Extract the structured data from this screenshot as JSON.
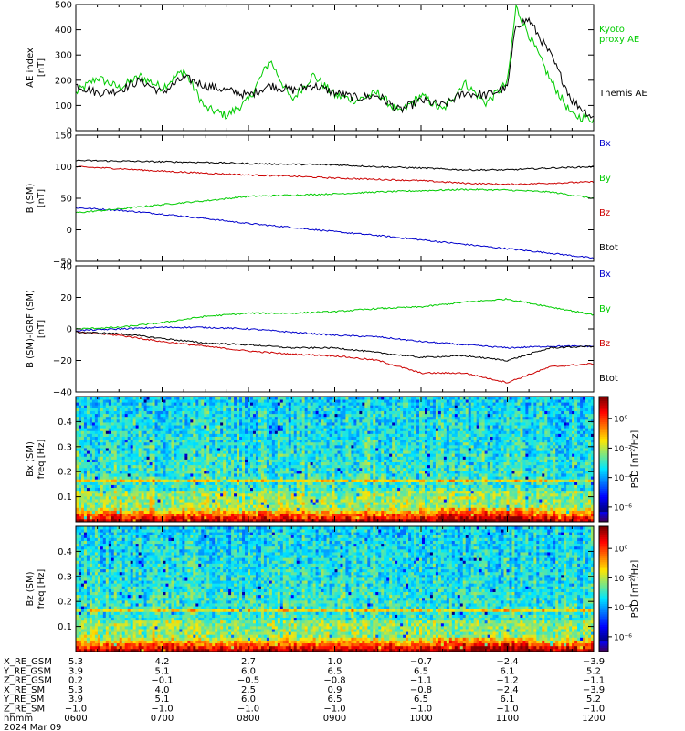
{
  "chart_data": [
    {
      "type": "line",
      "title": "",
      "ylabel_lines": [
        "AE index",
        "[nT]"
      ],
      "ylim": [
        0,
        500
      ],
      "yticks": [
        0,
        100,
        200,
        300,
        400,
        500
      ],
      "legend": [
        {
          "name": "Kyoto proxy AE",
          "color": "#00cc00"
        },
        {
          "name": "Themis AE",
          "color": "#000000"
        }
      ],
      "x_hours": [
        6.0,
        6.25,
        6.5,
        6.75,
        7.0,
        7.25,
        7.5,
        7.75,
        8.0,
        8.25,
        8.5,
        8.75,
        9.0,
        9.25,
        9.5,
        9.75,
        10.0,
        10.25,
        10.5,
        10.75,
        11.0,
        11.1,
        11.25,
        11.5,
        11.75,
        12.0
      ],
      "series": [
        {
          "name": "Kyoto proxy AE",
          "color": "#00cc00",
          "values": [
            150,
            210,
            170,
            215,
            170,
            240,
            90,
            60,
            120,
            280,
            120,
            220,
            140,
            120,
            150,
            70,
            140,
            80,
            190,
            110,
            190,
            490,
            380,
            200,
            60,
            45
          ]
        },
        {
          "name": "Themis AE",
          "color": "#000000",
          "values": [
            180,
            150,
            160,
            200,
            150,
            210,
            180,
            160,
            140,
            180,
            160,
            180,
            150,
            130,
            140,
            80,
            120,
            100,
            150,
            140,
            170,
            420,
            440,
            300,
            120,
            50
          ]
        }
      ]
    },
    {
      "type": "line",
      "title": "",
      "ylabel_lines": [
        "B (SM)",
        "[nT]"
      ],
      "ylim": [
        -50,
        150
      ],
      "yticks": [
        -50,
        0,
        50,
        100,
        150
      ],
      "legend": [
        {
          "name": "Bx",
          "color": "#0000cc"
        },
        {
          "name": "By",
          "color": "#00cc00"
        },
        {
          "name": "Bz",
          "color": "#cc0000"
        },
        {
          "name": "Btot",
          "color": "#000000"
        }
      ],
      "x_hours": [
        6.0,
        6.5,
        7.0,
        7.5,
        8.0,
        8.5,
        9.0,
        9.5,
        10.0,
        10.5,
        11.0,
        11.5,
        12.0
      ],
      "series": [
        {
          "name": "Bx",
          "color": "#0000cc",
          "values": [
            35,
            31,
            25,
            18,
            10,
            4,
            -3,
            -9,
            -16,
            -23,
            -30,
            -37,
            -45
          ]
        },
        {
          "name": "By",
          "color": "#00cc00",
          "values": [
            27,
            33,
            40,
            46,
            53,
            55,
            57,
            60,
            62,
            64,
            63,
            60,
            50
          ]
        },
        {
          "name": "Bz",
          "color": "#cc0000",
          "values": [
            100,
            97,
            93,
            90,
            87,
            85,
            82,
            80,
            78,
            74,
            72,
            74,
            76
          ]
        },
        {
          "name": "Btot",
          "color": "#000000",
          "values": [
            110,
            109,
            108,
            107,
            105,
            104,
            103,
            100,
            98,
            95,
            95,
            98,
            100
          ]
        }
      ]
    },
    {
      "type": "line",
      "title": "",
      "ylabel_lines": [
        "B (SM)-IGRF (SM)",
        "[nT]"
      ],
      "ylim": [
        -40,
        40
      ],
      "yticks": [
        -40,
        -20,
        0,
        20,
        40
      ],
      "legend": [
        {
          "name": "Bx",
          "color": "#0000cc"
        },
        {
          "name": "By",
          "color": "#00cc00"
        },
        {
          "name": "Bz",
          "color": "#cc0000"
        },
        {
          "name": "Btot",
          "color": "#000000"
        }
      ],
      "x_hours": [
        6.0,
        6.5,
        7.0,
        7.5,
        8.0,
        8.5,
        9.0,
        9.5,
        10.0,
        10.5,
        11.0,
        11.5,
        12.0
      ],
      "series": [
        {
          "name": "Bx",
          "color": "#0000cc",
          "values": [
            -1,
            0,
            1,
            1,
            0,
            -2,
            -4,
            -5,
            -8,
            -10,
            -12,
            -11,
            -11
          ]
        },
        {
          "name": "By",
          "color": "#00cc00",
          "values": [
            0,
            1,
            4,
            8,
            10,
            10,
            11,
            13,
            14,
            17,
            19,
            14,
            9
          ]
        },
        {
          "name": "Bz",
          "color": "#cc0000",
          "values": [
            -2,
            -4,
            -8,
            -11,
            -14,
            -16,
            -17,
            -20,
            -28,
            -28,
            -34,
            -24,
            -22
          ]
        },
        {
          "name": "Btot",
          "color": "#000000",
          "values": [
            -2,
            -3,
            -6,
            -9,
            -10,
            -12,
            -12,
            -15,
            -18,
            -17,
            -20,
            -12,
            -11
          ]
        }
      ]
    },
    {
      "type": "heatmap",
      "title": "",
      "ylabel_lines": [
        "Bx (SM)",
        "freq [Hz]"
      ],
      "ylim": [
        0,
        0.5
      ],
      "yticks": [
        0.1,
        0.2,
        0.3,
        0.4
      ],
      "colorbar_label": "PSD [nT²/Hz]",
      "colorbar_ticks": [
        "10⁰",
        "10⁻²",
        "10⁻⁴",
        "10⁻⁶"
      ],
      "colorbar_exponents": [
        0,
        -2,
        -4,
        -6
      ],
      "clim_exponents": [
        -7,
        1.5
      ],
      "notable_band_hz": 0.165
    },
    {
      "type": "heatmap",
      "title": "",
      "ylabel_lines": [
        "Bz (SM)",
        "freq [Hz]"
      ],
      "ylim": [
        0,
        0.5
      ],
      "yticks": [
        0.1,
        0.2,
        0.3,
        0.4
      ],
      "colorbar_label": "PSD [nT²/Hz]",
      "colorbar_ticks": [
        "10⁰",
        "10⁻²",
        "10⁻⁴",
        "10⁻⁶"
      ],
      "colorbar_exponents": [
        0,
        -2,
        -4,
        -6
      ],
      "clim_exponents": [
        -7,
        1.5
      ],
      "notable_band_hz": 0.165
    }
  ],
  "x_axis": {
    "range_hours": [
      6,
      12
    ],
    "tick_hours": [
      6,
      7,
      8,
      9,
      10,
      11,
      12
    ],
    "rows": [
      {
        "label": "X_RE_GSM",
        "values": [
          "5.3",
          "4.2",
          "2.7",
          "1.0",
          "−0.7",
          "−2.4",
          "−3.9"
        ]
      },
      {
        "label": "Y_RE_GSM",
        "values": [
          "3.9",
          "5.1",
          "6.0",
          "6.5",
          "6.5",
          "6.1",
          "5.2"
        ]
      },
      {
        "label": "Z_RE_GSM",
        "values": [
          "0.2",
          "−0.1",
          "−0.5",
          "−0.8",
          "−1.1",
          "−1.2",
          "−1.1"
        ]
      },
      {
        "label": "X_RE_SM",
        "values": [
          "5.3",
          "4.0",
          "2.5",
          "0.9",
          "−0.8",
          "−2.4",
          "−3.9"
        ]
      },
      {
        "label": "Y_RE_SM",
        "values": [
          "3.9",
          "5.1",
          "6.0",
          "6.5",
          "6.5",
          "6.1",
          "5.2"
        ]
      },
      {
        "label": "Z_RE_SM",
        "values": [
          "−1.0",
          "−1.0",
          "−1.0",
          "−1.0",
          "−1.0",
          "−1.0",
          "−1.0"
        ]
      },
      {
        "label": "hhmm",
        "values": [
          "0600",
          "0700",
          "0800",
          "0900",
          "1000",
          "1100",
          "1200"
        ]
      }
    ],
    "date": "2024 Mar 09"
  }
}
